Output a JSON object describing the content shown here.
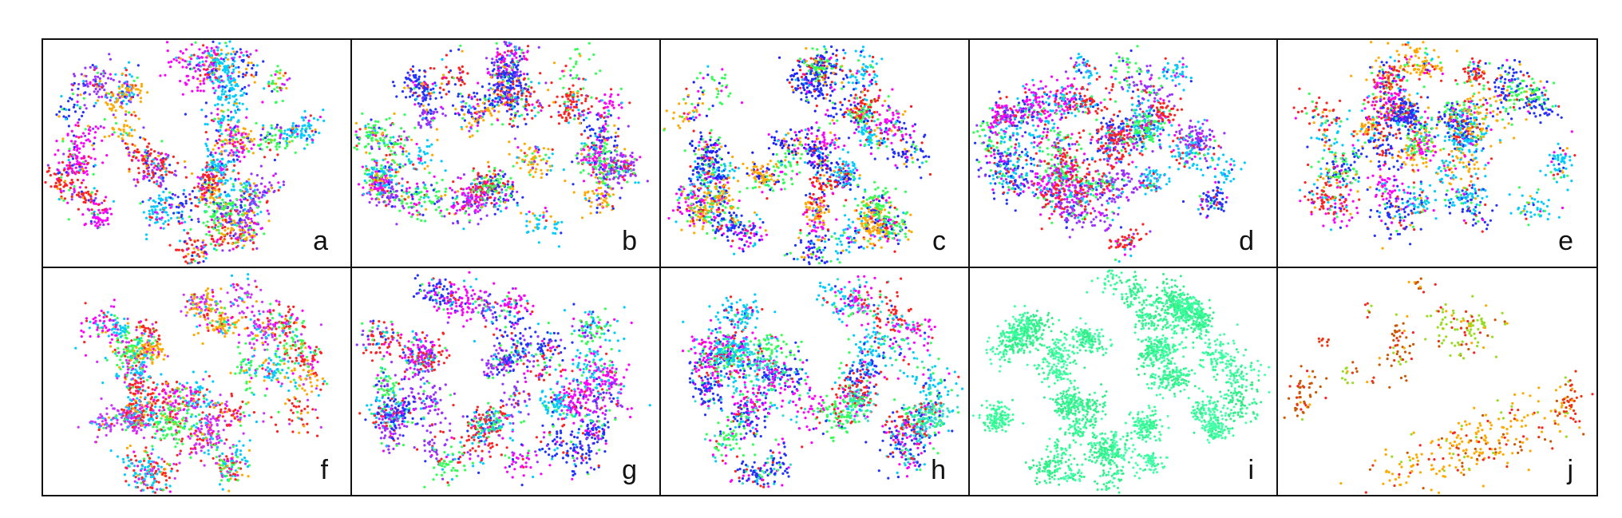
{
  "chart_data": {
    "type": "scatter",
    "title": "",
    "grid": false,
    "legend": "none",
    "panels": [
      {
        "label": "a",
        "palette": [
          "#ff00ff",
          "#2233ff",
          "#00ccff",
          "#33ff55",
          "#ff2222",
          "#ffaa00",
          "#9933ff"
        ]
      },
      {
        "label": "b",
        "palette": [
          "#2233ff",
          "#33ff55",
          "#ff00ff",
          "#00ccff",
          "#ff2222",
          "#ffaa00",
          "#9933ff"
        ]
      },
      {
        "label": "c",
        "palette": [
          "#2233ff",
          "#1a1aff",
          "#ff1a1a",
          "#00ccff",
          "#33ff55",
          "#ff00ff",
          "#ffaa00"
        ]
      },
      {
        "label": "d",
        "palette": [
          "#2233ff",
          "#ff00ff",
          "#33ff55",
          "#00ccff",
          "#ff2222",
          "#9933ff"
        ]
      },
      {
        "label": "e",
        "palette": [
          "#00ccff",
          "#2233ff",
          "#33ff55",
          "#ff00ff",
          "#ff2222",
          "#ffaa00"
        ]
      },
      {
        "label": "f",
        "palette": [
          "#ff00ff",
          "#cc33ff",
          "#00ccff",
          "#33ff55",
          "#ff2222",
          "#ffaa00"
        ]
      },
      {
        "label": "g",
        "palette": [
          "#33ff55",
          "#2233ff",
          "#ff00ff",
          "#9933ff",
          "#ff2222",
          "#00ccff"
        ]
      },
      {
        "label": "h",
        "palette": [
          "#00ccff",
          "#33ddcc",
          "#2233ff",
          "#ff00ff",
          "#ff2222",
          "#33ff55"
        ]
      },
      {
        "label": "i",
        "palette": [
          "#33ff99",
          "#33ee88",
          "#44ffaa"
        ]
      },
      {
        "label": "j",
        "palette": [
          "#ff2222",
          "#ffaa00",
          "#99dd22",
          "#cc5500",
          "#ee3311"
        ]
      }
    ]
  }
}
